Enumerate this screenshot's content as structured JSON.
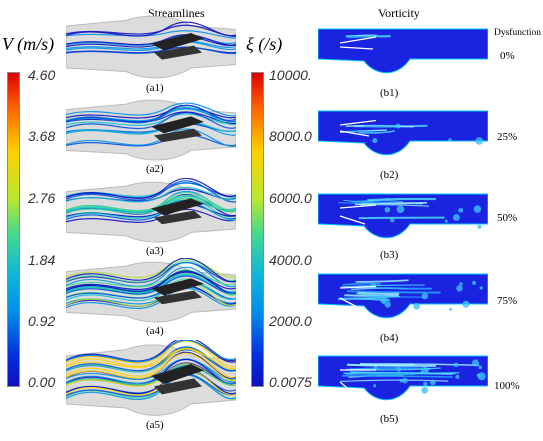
{
  "headers": {
    "streamlines": "Streamlines",
    "vorticity": "Vorticity",
    "dysfunction": "Dysfunction"
  },
  "velocity_bar": {
    "label": "V (m/s)",
    "ticks": [
      "4.60",
      "3.68",
      "2.76",
      "1.84",
      "0.92",
      "0.00"
    ]
  },
  "vorticity_bar": {
    "label": "ξ (/s)",
    "ticks": [
      "10000.",
      "8000.0",
      "6000.0",
      "4000.0",
      "2000.0",
      "0.0075"
    ]
  },
  "rows": [
    {
      "stream_caption": "(a1)",
      "vort_caption": "(b1)",
      "dysfunction": "0%"
    },
    {
      "stream_caption": "(a2)",
      "vort_caption": "(b2)",
      "dysfunction": "25%"
    },
    {
      "stream_caption": "(a3)",
      "vort_caption": "(b3)",
      "dysfunction": "50%"
    },
    {
      "stream_caption": "(a4)",
      "vort_caption": "(b4)",
      "dysfunction": "75%"
    },
    {
      "stream_caption": "(a5)",
      "vort_caption": "(b5)",
      "dysfunction": "100%"
    }
  ],
  "colors": {
    "jet_gradient": [
      "#dc0000",
      "#ff8000",
      "#f0e000",
      "#80e040",
      "#20c8b0",
      "#00a0e0",
      "#0040e0",
      "#1010c0"
    ],
    "vorticity_field": "#1a24e0",
    "vorticity_wall": "#00c8ff"
  }
}
